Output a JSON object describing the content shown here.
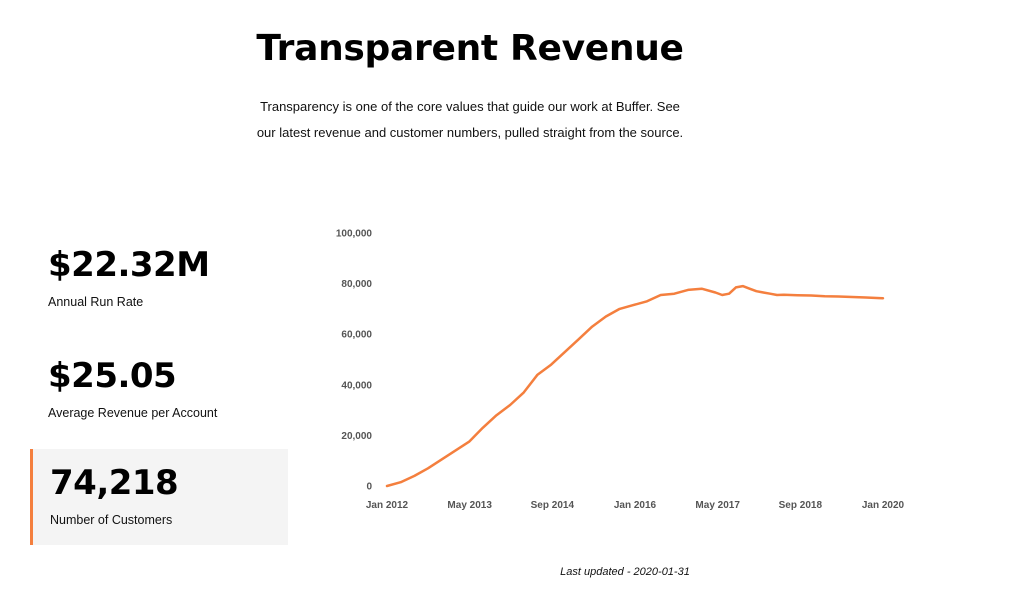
{
  "header": {
    "title": "Transparent Revenue",
    "intro": "Transparency is one of the core values that guide our work at Buffer. See our latest revenue and customer numbers, pulled straight from the source."
  },
  "metrics": [
    {
      "value": "$22.32M",
      "label": "Annual Run Rate",
      "selected": false
    },
    {
      "value": "$25.05",
      "label": "Average Revenue per Account",
      "selected": false
    },
    {
      "value": "74,218",
      "label": "Number of Customers",
      "selected": true
    }
  ],
  "colors": {
    "accent": "#f47f3e",
    "selected_bg": "#f4f4f4"
  },
  "chart_data": {
    "type": "line",
    "title": "Number of Customers",
    "xlabel": "",
    "ylabel": "",
    "ylim": [
      0,
      100000
    ],
    "y_ticks": [
      0,
      20000,
      40000,
      60000,
      80000,
      100000
    ],
    "y_tick_labels": [
      "0",
      "20,000",
      "40,000",
      "60,000",
      "80,000",
      "100,000"
    ],
    "x_tick_labels": [
      "Jan 2012",
      "May 2013",
      "Sep 2014",
      "Jan 2016",
      "May 2017",
      "Sep 2018",
      "Jan 2020"
    ],
    "grid": false,
    "series": [
      {
        "name": "Customers",
        "color": "#f47f3e",
        "x": [
          0,
          4,
          8,
          12,
          16,
          20,
          24,
          28,
          32,
          36,
          40,
          44,
          48,
          52,
          56,
          60,
          64,
          68,
          72,
          76,
          80,
          84,
          88,
          92,
          96,
          98,
          100,
          102,
          104,
          106,
          108,
          110,
          112,
          114,
          116,
          120,
          124,
          128,
          132,
          136,
          140,
          144,
          145
        ],
        "values": [
          0,
          1500,
          4000,
          7000,
          10500,
          14000,
          17500,
          23000,
          28000,
          32000,
          37000,
          44000,
          48000,
          53000,
          58000,
          63000,
          67000,
          70000,
          71500,
          73000,
          75500,
          76000,
          77500,
          78000,
          76500,
          75500,
          76000,
          78500,
          79000,
          78000,
          77000,
          76500,
          76000,
          75500,
          75600,
          75400,
          75300,
          75000,
          74900,
          74700,
          74500,
          74250,
          74218
        ]
      }
    ]
  },
  "footer": {
    "last_updated": "Last updated - 2020-01-31"
  }
}
